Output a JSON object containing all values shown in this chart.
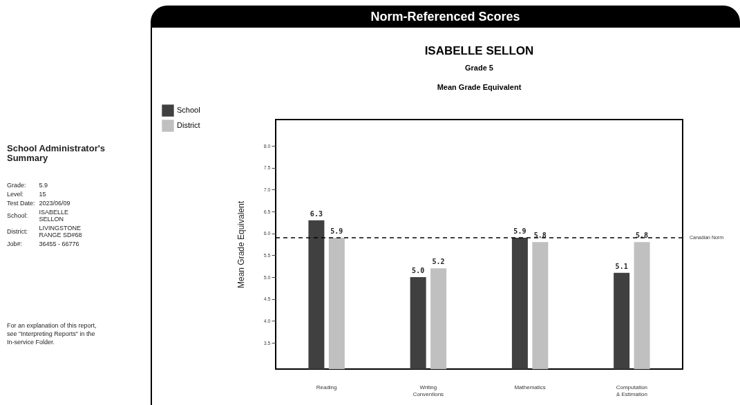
{
  "chart_data": {
    "type": "bar",
    "title": "ISABELLE SELLON",
    "subtitle": "Grade 5",
    "ylabel": "Mean Grade Equivalent",
    "categories": [
      "Reading",
      "Writing Conventions",
      "Mathematics",
      "Computation & Estimation"
    ],
    "series": [
      {
        "name": "School",
        "color": "#404040",
        "values": [
          6.3,
          5.0,
          5.9,
          5.1
        ],
        "value_labels": [
          "6.3",
          "5.0",
          "5.9",
          "5.1"
        ]
      },
      {
        "name": "District",
        "color": "#c0c0c0",
        "values": [
          5.9,
          5.2,
          5.8,
          5.8
        ],
        "value_labels": [
          "5.9",
          "5.2",
          "5.8",
          "5.8"
        ]
      }
    ],
    "ylim": [
      2.9,
      8.6
    ],
    "yticks": [
      {
        "value": 3.5,
        "label": "3.5"
      },
      {
        "value": 4,
        "label": "4.0"
      },
      {
        "value": 4.5,
        "label": "4.5"
      },
      {
        "value": 5,
        "label": "5.0"
      },
      {
        "value": 5.5,
        "label": "5.5"
      },
      {
        "value": 6,
        "label": "6.0"
      },
      {
        "value": 6.5,
        "label": "6.5"
      },
      {
        "value": 7,
        "label": "7.0"
      },
      {
        "value": 7.5,
        "label": "7.5"
      },
      {
        "value": 8,
        "label": "8.0"
      }
    ],
    "ref_lines": [
      {
        "axis": "y",
        "value": 5.9,
        "label": "Canadian Norm",
        "line_style": "dashed",
        "color": "#000000"
      }
    ],
    "legend": "top left",
    "grid": false,
    "annotations": [
      "Mean Grade Equivalent",
      "Norm-Referenced Scores",
      "School Administrator's Summary",
      "Grade:",
      "5.9",
      "Level:",
      "15",
      "Test Date:",
      "2023/06/09",
      "School:",
      "ISABELLE SELLON",
      "District:",
      "LIVINGSTONE RANGE SD#68",
      "Job#:",
      "36455 - 66776",
      "For an explanation of this report, see \"Interpreting Reports\" in the In-service Folder."
    ]
  }
}
